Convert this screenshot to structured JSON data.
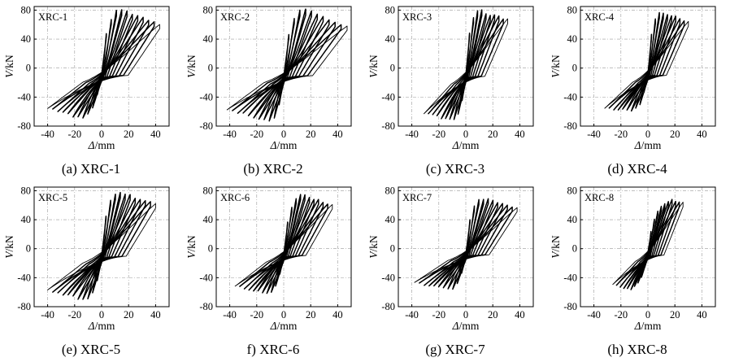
{
  "figure": {
    "panels": [
      {
        "caption": "(a) XRC-1",
        "chart_title": "XRC-1"
      },
      {
        "caption": "(b) XRC-2",
        "chart_title": "XRC-2"
      },
      {
        "caption": "(c) XRC-3",
        "chart_title": "XRC-3"
      },
      {
        "caption": "(d) XRC-4",
        "chart_title": "XRC-4"
      },
      {
        "caption": "(e) XRC-5",
        "chart_title": "XRC-5"
      },
      {
        "caption": "f) XRC-6",
        "chart_title": "XRC-6"
      },
      {
        "caption": "(g) XRC-7",
        "chart_title": "XRC-7"
      },
      {
        "caption": "(h) XRC-8",
        "chart_title": "XRC-8"
      }
    ]
  },
  "chart_data": [
    {
      "type": "line",
      "title": "XRC-1",
      "xlabel": "Δ/mm",
      "ylabel": "V/kN",
      "xlim": [
        -50,
        50
      ],
      "ylim": [
        -80,
        85
      ],
      "xticks": [
        "-40",
        "-20",
        "0",
        "20",
        "40"
      ],
      "yticks": [
        "80",
        "40",
        "0",
        "-40",
        "-80"
      ],
      "grid": true,
      "hysteresis": {
        "peak_pos": [
          14,
          82
        ],
        "peak_neg": [
          -15,
          -70
        ],
        "max_disp_pos": 43,
        "max_disp_neg": -40,
        "cycles": 11,
        "end_load_pos": 62,
        "end_load_neg": -55
      }
    },
    {
      "type": "line",
      "title": "XRC-2",
      "xlabel": "Δ/mm",
      "ylabel": "V/kN",
      "xlim": [
        -50,
        50
      ],
      "ylim": [
        -80,
        85
      ],
      "xticks": [
        "-40",
        "-20",
        "0",
        "20",
        "40"
      ],
      "yticks": [
        "80",
        "40",
        "0",
        "-40",
        "-80"
      ],
      "grid": true,
      "hysteresis": {
        "peak_pos": [
          15,
          82
        ],
        "peak_neg": [
          -10,
          -74
        ],
        "max_disp_pos": 47,
        "max_disp_neg": -42,
        "cycles": 11,
        "end_load_pos": 58,
        "end_load_neg": -57
      }
    },
    {
      "type": "line",
      "title": "XRC-3",
      "xlabel": "Δ/mm",
      "ylabel": "V/kN",
      "xlim": [
        -50,
        50
      ],
      "ylim": [
        -80,
        85
      ],
      "xticks": [
        "-40",
        "-20",
        "0",
        "20",
        "40"
      ],
      "yticks": [
        "80",
        "40",
        "0",
        "-40",
        "-80"
      ],
      "grid": true,
      "hysteresis": {
        "peak_pos": [
          10,
          80
        ],
        "peak_neg": [
          -10,
          -72
        ],
        "max_disp_pos": 31,
        "max_disp_neg": -31,
        "cycles": 10,
        "end_load_pos": 67,
        "end_load_neg": -63
      }
    },
    {
      "type": "line",
      "title": "XRC-4",
      "xlabel": "Δ/mm",
      "ylabel": "V/kN",
      "xlim": [
        -50,
        50
      ],
      "ylim": [
        -80,
        85
      ],
      "xticks": [
        "-40",
        "-20",
        "0",
        "20",
        "40"
      ],
      "yticks": [
        "80",
        "40",
        "0",
        "-40",
        "-80"
      ],
      "grid": true,
      "hysteresis": {
        "peak_pos": [
          10,
          78
        ],
        "peak_neg": [
          -12,
          -60
        ],
        "max_disp_pos": 30,
        "max_disp_neg": -32,
        "cycles": 10,
        "end_load_pos": 64,
        "end_load_neg": -55
      }
    },
    {
      "type": "line",
      "title": "XRC-5",
      "xlabel": "Δ/mm",
      "ylabel": "V/kN",
      "xlim": [
        -50,
        50
      ],
      "ylim": [
        -80,
        85
      ],
      "xticks": [
        "-40",
        "-20",
        "0",
        "20",
        "40"
      ],
      "yticks": [
        "80",
        "40",
        "0",
        "-40",
        "-80"
      ],
      "grid": true,
      "hysteresis": {
        "peak_pos": [
          13,
          78
        ],
        "peak_neg": [
          -12,
          -72
        ],
        "max_disp_pos": 40,
        "max_disp_neg": -40,
        "cycles": 11,
        "end_load_pos": 63,
        "end_load_neg": -57
      }
    },
    {
      "type": "line",
      "title": "XRC-6",
      "xlabel": "Δ/mm",
      "ylabel": "V/kN",
      "xlim": [
        -50,
        50
      ],
      "ylim": [
        -80,
        85
      ],
      "xticks": [
        "-40",
        "-20",
        "0",
        "20",
        "40"
      ],
      "yticks": [
        "80",
        "40",
        "0",
        "-40",
        "-80"
      ],
      "grid": true,
      "hysteresis": {
        "peak_pos": [
          14,
          75
        ],
        "peak_neg": [
          -12,
          -63
        ],
        "max_disp_pos": 36,
        "max_disp_neg": -36,
        "cycles": 11,
        "end_load_pos": 60,
        "end_load_neg": -52
      }
    },
    {
      "type": "line",
      "title": "XRC-7",
      "xlabel": "Δ/mm",
      "ylabel": "V/kN",
      "xlim": [
        -50,
        50
      ],
      "ylim": [
        -80,
        85
      ],
      "xticks": [
        "-40",
        "-20",
        "0",
        "20",
        "40"
      ],
      "yticks": [
        "80",
        "40",
        "0",
        "-40",
        "-80"
      ],
      "grid": true,
      "hysteresis": {
        "peak_pos": [
          12,
          70
        ],
        "peak_neg": [
          -12,
          -57
        ],
        "max_disp_pos": 38,
        "max_disp_neg": -38,
        "cycles": 11,
        "end_load_pos": 57,
        "end_load_neg": -47
      }
    },
    {
      "type": "line",
      "title": "XRC-8",
      "xlabel": "Δ/mm",
      "ylabel": "V/kN",
      "xlim": [
        -50,
        50
      ],
      "ylim": [
        -80,
        85
      ],
      "xticks": [
        "-40",
        "-20",
        "0",
        "20",
        "40"
      ],
      "yticks": [
        "80",
        "40",
        "0",
        "-40",
        "-80"
      ],
      "grid": true,
      "hysteresis": {
        "peak_pos": [
          18,
          68
        ],
        "peak_neg": [
          -14,
          -57
        ],
        "max_disp_pos": 26,
        "max_disp_neg": -26,
        "cycles": 10,
        "end_load_pos": 63,
        "end_load_neg": -50
      }
    }
  ]
}
